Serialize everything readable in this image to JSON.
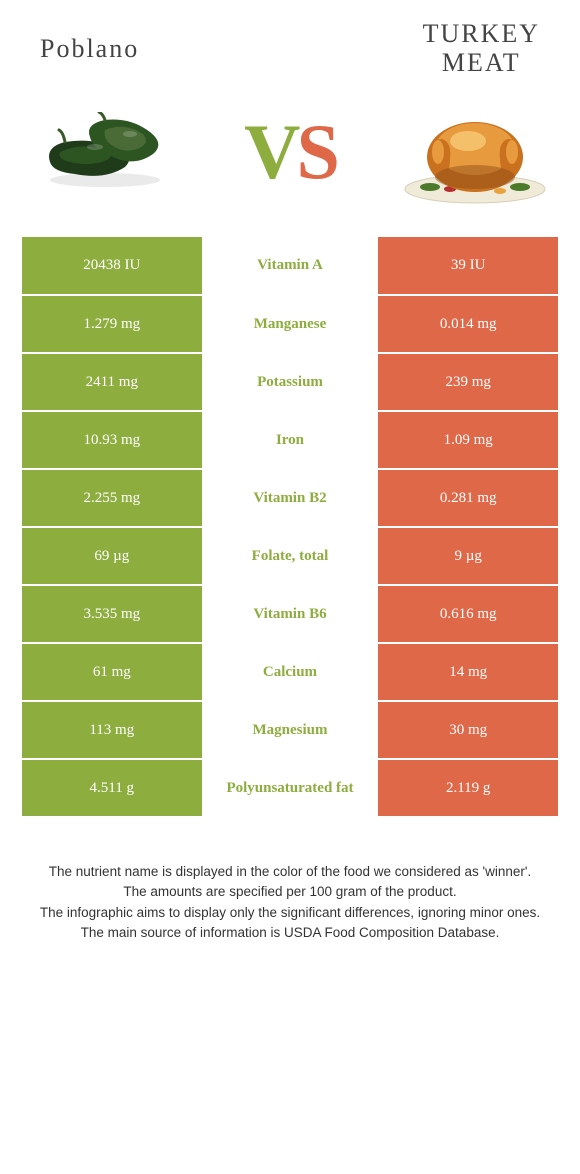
{
  "header": {
    "left": "Poblano",
    "right_line1": "TURKEY",
    "right_line2": "MEAT"
  },
  "vs": {
    "v": "V",
    "s": "S"
  },
  "colors": {
    "green": "#8dae3e",
    "orange": "#df6848",
    "white": "#ffffff",
    "text": "#333333",
    "poblano_dark": "#1f3b1a",
    "poblano_mid": "#2d5522",
    "poblano_light": "#4a6b35",
    "turkey_skin": "#c9711f",
    "turkey_light": "#e89a3f",
    "turkey_dark": "#8a4a15",
    "plate": "#f0ead8",
    "garnish": "#4a7a2a"
  },
  "rows": [
    {
      "left": "20438 IU",
      "name": "Vitamin A",
      "right": "39 IU",
      "winner": "green"
    },
    {
      "left": "1.279 mg",
      "name": "Manganese",
      "right": "0.014 mg",
      "winner": "green"
    },
    {
      "left": "2411 mg",
      "name": "Potassium",
      "right": "239 mg",
      "winner": "green"
    },
    {
      "left": "10.93 mg",
      "name": "Iron",
      "right": "1.09 mg",
      "winner": "green"
    },
    {
      "left": "2.255 mg",
      "name": "Vitamin B2",
      "right": "0.281 mg",
      "winner": "green"
    },
    {
      "left": "69 µg",
      "name": "Folate, total",
      "right": "9 µg",
      "winner": "green"
    },
    {
      "left": "3.535 mg",
      "name": "Vitamin B6",
      "right": "0.616 mg",
      "winner": "green"
    },
    {
      "left": "61 mg",
      "name": "Calcium",
      "right": "14 mg",
      "winner": "green"
    },
    {
      "left": "113 mg",
      "name": "Magnesium",
      "right": "30 mg",
      "winner": "green"
    },
    {
      "left": "4.511 g",
      "name": "Polyunsaturated fat",
      "right": "2.119 g",
      "winner": "green"
    }
  ],
  "footer": {
    "l1": "The nutrient name is displayed in the color of the food we considered as 'winner'.",
    "l2": "The amounts are specified per 100 gram of the product.",
    "l3": "The infographic aims to display only the significant differences, ignoring minor ones.",
    "l4": "The main source of information is USDA Food Composition Database."
  }
}
